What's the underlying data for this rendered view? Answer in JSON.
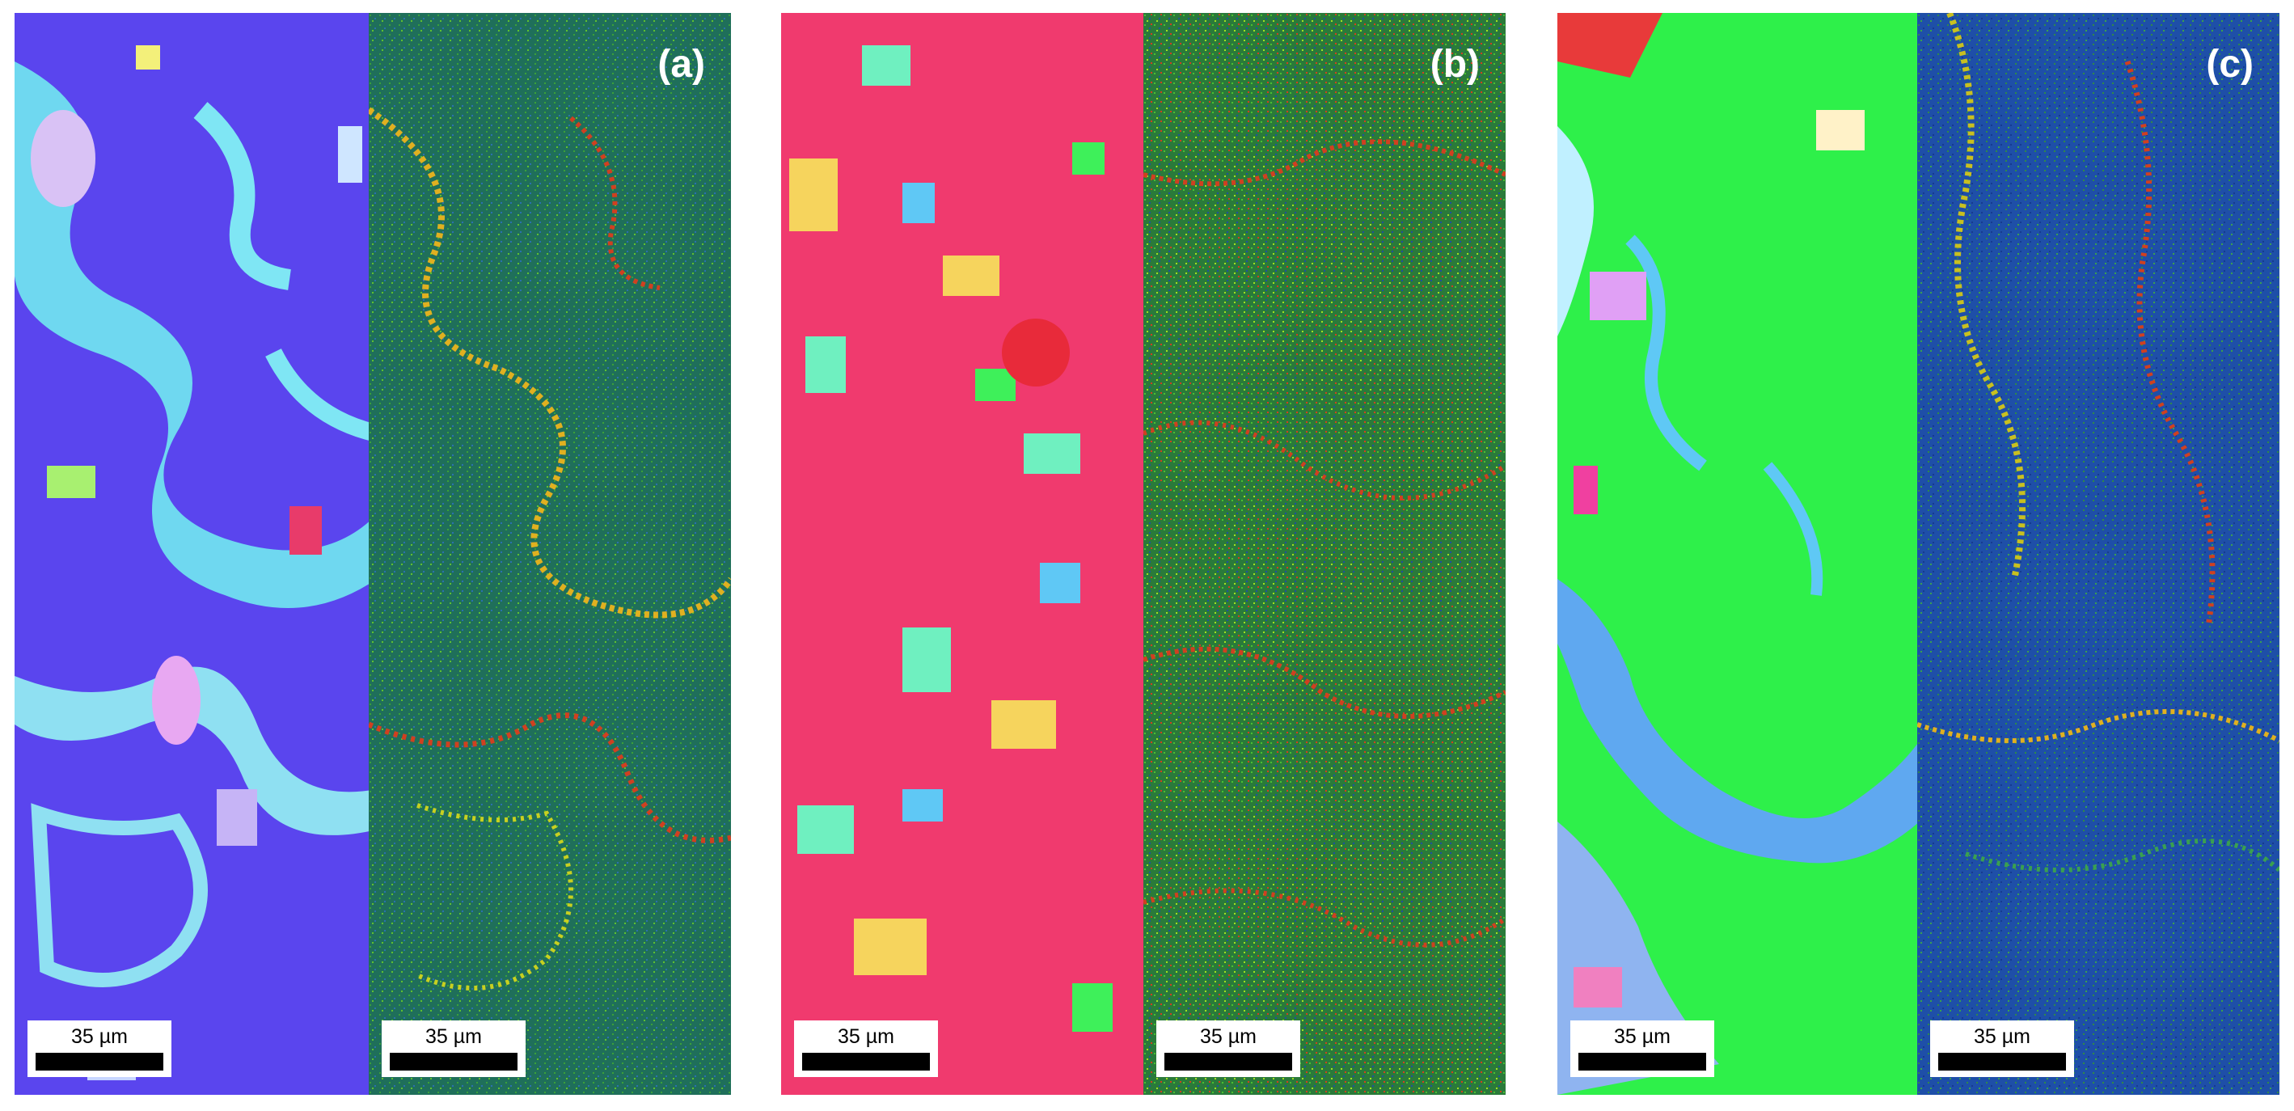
{
  "figure": {
    "panels": [
      {
        "label": "(a)",
        "ipf_scale": "35 µm",
        "kam_scale": "35 µm",
        "colors": {
          "ipf_matrix": "#5a45ee",
          "ipf_boundary": "#5fd6f0",
          "kam_base": "#1f6f5a"
        }
      },
      {
        "label": "(b)",
        "ipf_scale": "35 µm",
        "kam_scale": "35 µm",
        "colors": {
          "ipf_matrix": "#f03a6e",
          "ipf_boundary": "#f7f05a",
          "kam_base": "#2a7a3a"
        }
      },
      {
        "label": "(c)",
        "ipf_scale": "35 µm",
        "kam_scale": "35 µm",
        "colors": {
          "ipf_matrix": "#2ef04a",
          "ipf_boundary": "#4fa9e8",
          "kam_base": "#1e4fa8"
        }
      }
    ]
  }
}
